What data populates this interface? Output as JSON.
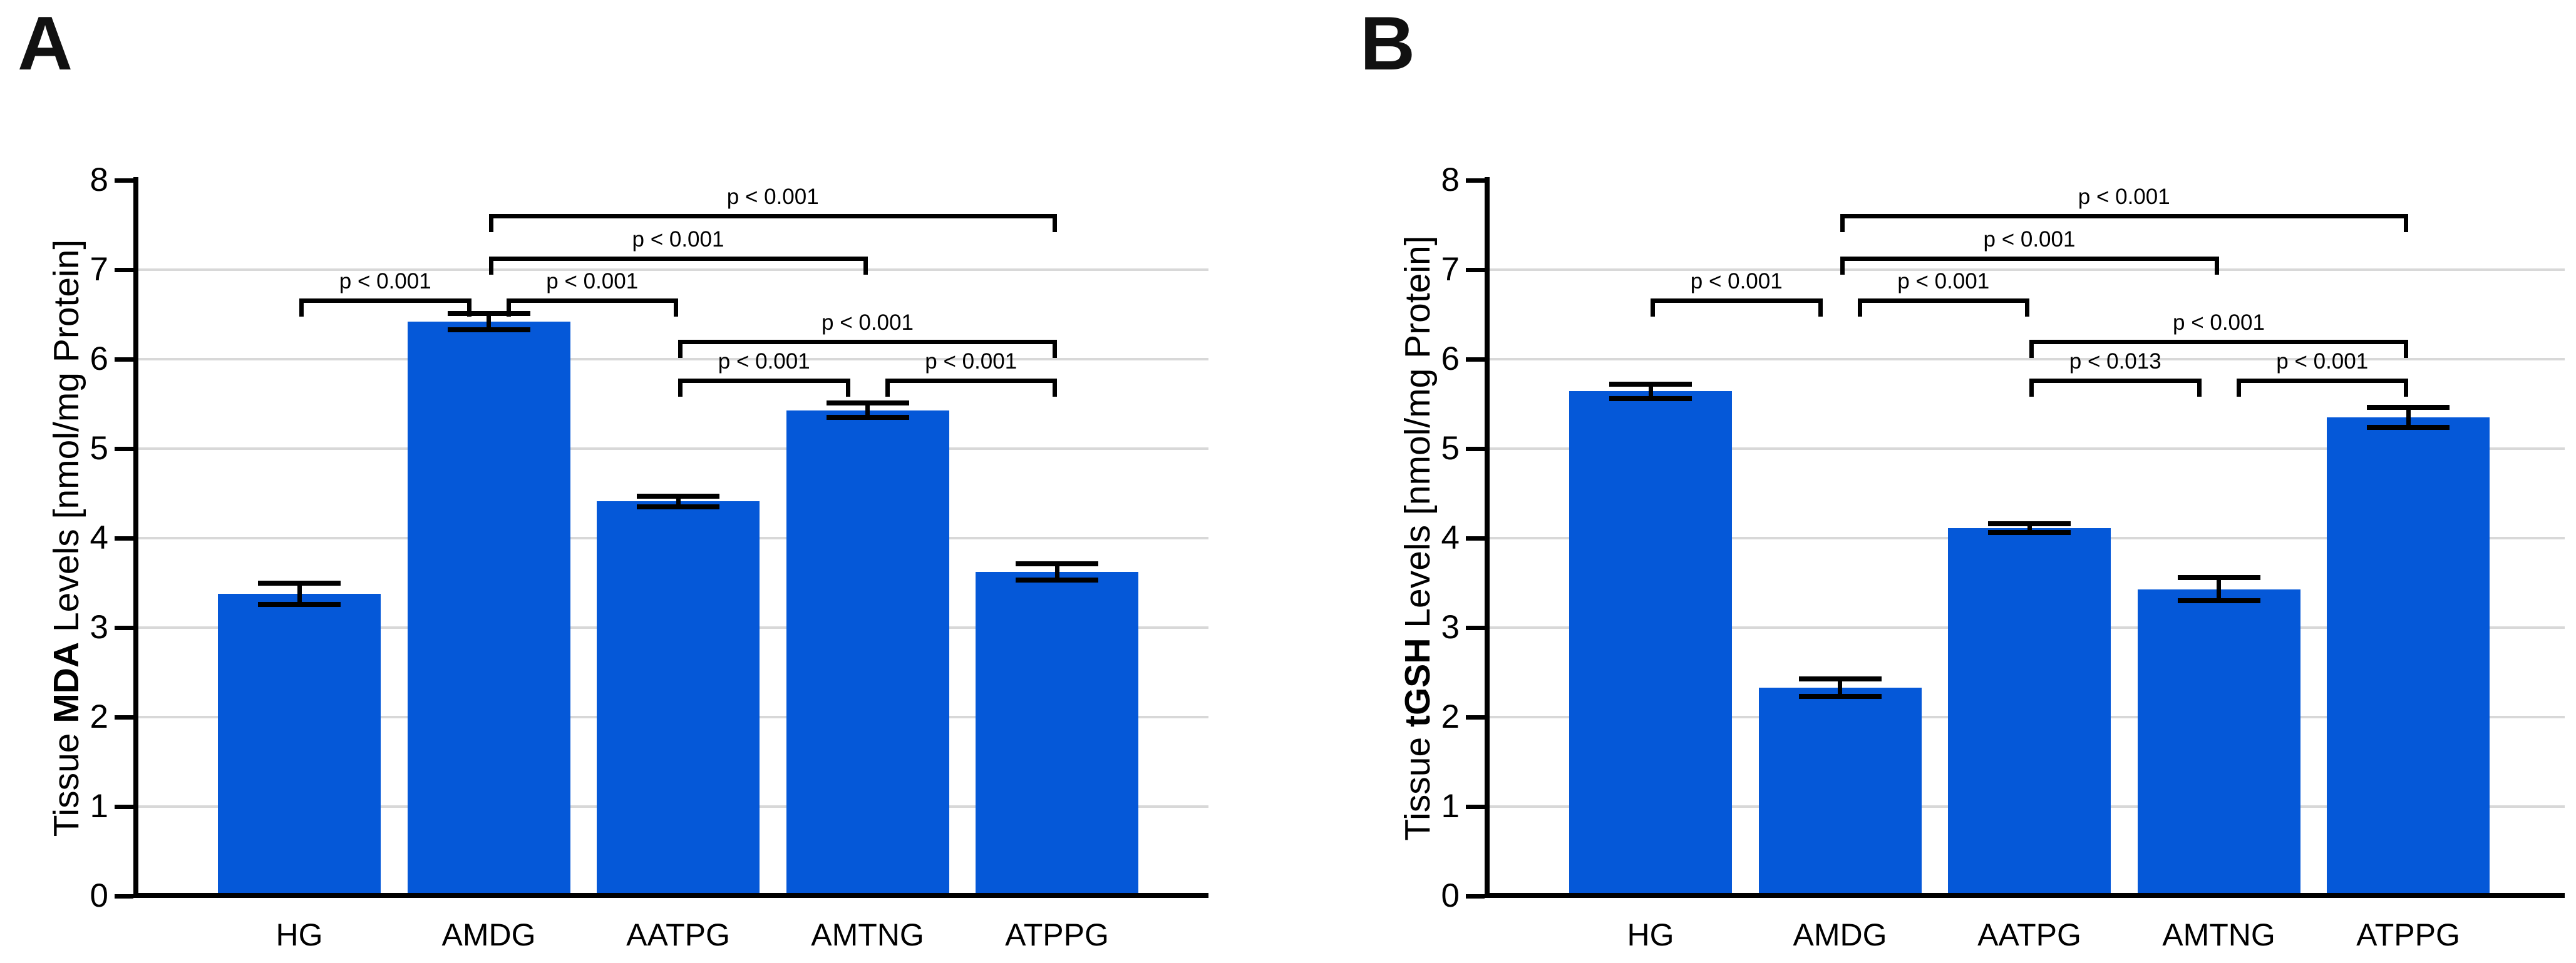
{
  "figure": {
    "panels": [
      {
        "panel_label": "A",
        "y_axis_title": {
          "prefix": "Tissue ",
          "bold": "MDA",
          "suffix": " Levels [nmol/mg Protein]"
        }
      },
      {
        "panel_label": "B",
        "y_axis_title": {
          "prefix": "Tissue ",
          "bold": "tGSH",
          "suffix": " Levels [nmol/mg Protein]"
        }
      }
    ]
  },
  "chart_data": [
    {
      "type": "bar",
      "panel": "A",
      "ylabel": "Tissue MDA Levels [nmol/mg Protein]",
      "categories": [
        "HG",
        "AMDG",
        "AATPG",
        "AMTNG",
        "ATPPG"
      ],
      "values": [
        3.38,
        6.42,
        4.41,
        5.43,
        3.62
      ],
      "errors": [
        0.12,
        0.09,
        0.06,
        0.08,
        0.09
      ],
      "ylim": [
        0,
        8
      ],
      "yticks": [
        0,
        1,
        2,
        3,
        4,
        5,
        6,
        7,
        8
      ],
      "grid": "horizontal",
      "bar_color": "#0558d8",
      "significance_brackets": [
        {
          "from": "HG",
          "to": "AMDG",
          "label": "p < 0.001",
          "y": 6.68
        },
        {
          "from": "AMDG",
          "to": "AATPG",
          "label": "p < 0.001",
          "y": 6.68
        },
        {
          "from": "AMDG",
          "to": "AMTNG",
          "label": "p < 0.001",
          "y": 7.15
        },
        {
          "from": "AMDG",
          "to": "ATPPG",
          "label": "p < 0.001",
          "y": 7.62
        },
        {
          "from": "AATPG",
          "to": "AMTNG",
          "label": "p < 0.001",
          "y": 5.78
        },
        {
          "from": "AMTNG",
          "to": "ATPPG",
          "label": "p < 0.001",
          "y": 5.78
        },
        {
          "from": "AATPG",
          "to": "ATPPG",
          "label": "p < 0.001",
          "y": 6.22
        }
      ]
    },
    {
      "type": "bar",
      "panel": "B",
      "ylabel": "Tissue tGSH Levels [nmol/mg Protein]",
      "categories": [
        "HG",
        "AMDG",
        "AATPG",
        "AMTNG",
        "ATPPG"
      ],
      "values": [
        5.64,
        2.33,
        4.11,
        3.43,
        5.35
      ],
      "errors": [
        0.08,
        0.1,
        0.05,
        0.13,
        0.11
      ],
      "ylim": [
        0,
        8
      ],
      "yticks": [
        0,
        1,
        2,
        3,
        4,
        5,
        6,
        7,
        8
      ],
      "grid": "horizontal",
      "bar_color": "#0558d8",
      "significance_brackets": [
        {
          "from": "HG",
          "to": "AMDG",
          "label": "p < 0.001",
          "y": 6.68
        },
        {
          "from": "AMDG",
          "to": "AATPG",
          "label": "p < 0.001",
          "y": 6.68
        },
        {
          "from": "AMDG",
          "to": "AMTNG",
          "label": "p < 0.001",
          "y": 7.15
        },
        {
          "from": "AMDG",
          "to": "ATPPG",
          "label": "p < 0.001",
          "y": 7.62
        },
        {
          "from": "AATPG",
          "to": "AMTNG",
          "label": "p < 0.013",
          "y": 5.78
        },
        {
          "from": "AMTNG",
          "to": "ATPPG",
          "label": "p < 0.001",
          "y": 5.78
        },
        {
          "from": "AATPG",
          "to": "ATPPG",
          "label": "p < 0.001",
          "y": 6.22
        }
      ]
    }
  ]
}
